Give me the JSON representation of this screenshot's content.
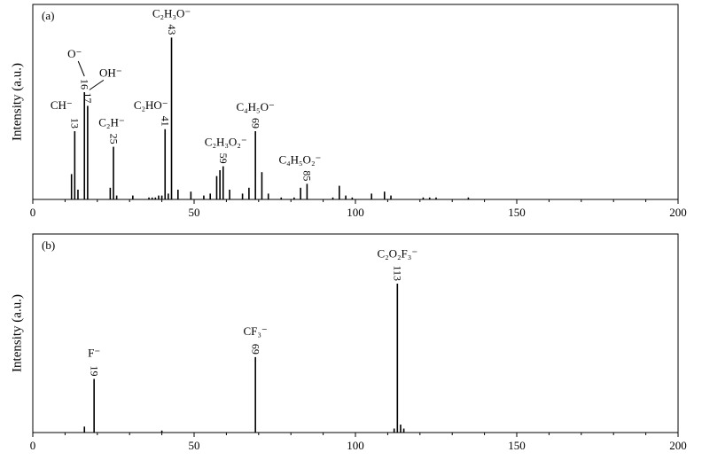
{
  "chart_data": [
    {
      "type": "stem",
      "panel_label": "(a)",
      "y_label": "Intensity (a.u.)",
      "xlim": [
        0,
        200
      ],
      "xticks": [
        0,
        50,
        100,
        150,
        200
      ],
      "xminorticks": [
        10,
        20,
        30,
        40,
        60,
        70,
        80,
        90,
        110,
        120,
        130,
        140,
        160,
        170,
        180,
        190
      ],
      "ylim": [
        0,
        100
      ],
      "color": "#000000",
      "x": [
        12,
        13,
        14,
        16,
        17,
        24,
        25,
        26,
        31,
        36,
        37,
        38,
        39,
        40,
        41,
        42,
        43,
        45,
        49,
        53,
        55,
        57,
        58,
        59,
        61,
        65,
        67,
        69,
        71,
        73,
        77,
        81,
        83,
        85,
        93,
        95,
        97,
        99,
        105,
        109,
        111,
        121,
        123,
        125,
        135
      ],
      "values": [
        13,
        35,
        5,
        55,
        48,
        6,
        27,
        2,
        2,
        1,
        1,
        1,
        2,
        2,
        36,
        3,
        83,
        5,
        4,
        2,
        3,
        12,
        15,
        17,
        5,
        3,
        6,
        35,
        14,
        3,
        1,
        1,
        6,
        8,
        1,
        7,
        2,
        1,
        3,
        4,
        2,
        1,
        1,
        1,
        1
      ],
      "annotations": [
        {
          "label": "CH⁻",
          "x": 13
        },
        {
          "label": "O⁻",
          "x": 16
        },
        {
          "label": "OH⁻",
          "x": 17
        },
        {
          "label": "C₂H⁻",
          "x": 25
        },
        {
          "label": "C₂HO⁻",
          "x": 41
        },
        {
          "label": "C₂H₃O⁻",
          "x": 43
        },
        {
          "label": "C₂H₃O₂⁻",
          "x": 59
        },
        {
          "label": "C₄H₅O⁻",
          "x": 69
        },
        {
          "label": "C₄H₅O₂⁻",
          "x": 85
        }
      ]
    },
    {
      "type": "stem",
      "panel_label": "(b)",
      "y_label": "Intensity (a.u.)",
      "xlim": [
        0,
        200
      ],
      "xticks": [
        0,
        50,
        100,
        150,
        200
      ],
      "xminorticks": [
        10,
        20,
        30,
        40,
        60,
        70,
        80,
        90,
        110,
        120,
        130,
        140,
        160,
        170,
        180,
        190
      ],
      "ylim": [
        0,
        100
      ],
      "color": "#000000",
      "x": [
        16,
        19,
        40,
        69,
        112,
        113,
        114,
        115
      ],
      "values": [
        3,
        27,
        1,
        38,
        2,
        75,
        4,
        2
      ],
      "annotations": [
        {
          "label": "F⁻",
          "x": 19
        },
        {
          "label": "CF₃⁻",
          "x": 69
        },
        {
          "label": "C₂O₂F₃⁻",
          "x": 113
        }
      ]
    }
  ]
}
